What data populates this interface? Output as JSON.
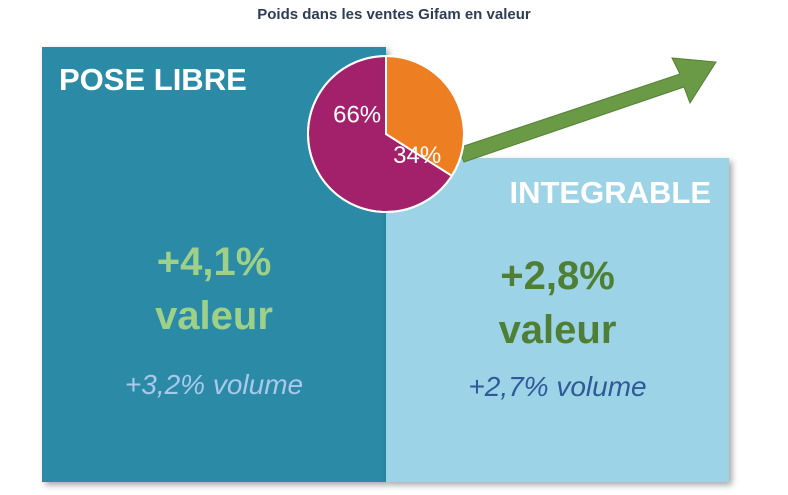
{
  "title": "Poids dans les ventes Gifam en valeur",
  "colors": {
    "pose_libre_panel": "#2b8aa5",
    "integrable_panel": "#9dd3e6",
    "pose_libre_value": "#9ed08a",
    "integrable_value": "#4f7f34",
    "pose_libre_volume": "#a9c9ec",
    "integrable_volume": "#2e5a96",
    "arrow": "#6a9a45"
  },
  "segments": {
    "pose_libre": {
      "label": "POSE LIBRE",
      "value_change": "+4,1%",
      "value_word": "valeur",
      "volume_change": "+3,2% volume"
    },
    "integrable": {
      "label": "INTEGRABLE",
      "value_change": "+2,8%",
      "value_word": "valeur",
      "volume_change": "+2,7% volume"
    }
  },
  "chart_data": {
    "type": "pie",
    "title": "Poids dans les ventes Gifam en valeur",
    "slices": [
      {
        "label": "66%",
        "value": 66,
        "color": "#a3216a",
        "segment": "POSE LIBRE"
      },
      {
        "label": "34%",
        "value": 34,
        "color": "#ee7e22",
        "segment": "INTEGRABLE"
      }
    ]
  }
}
